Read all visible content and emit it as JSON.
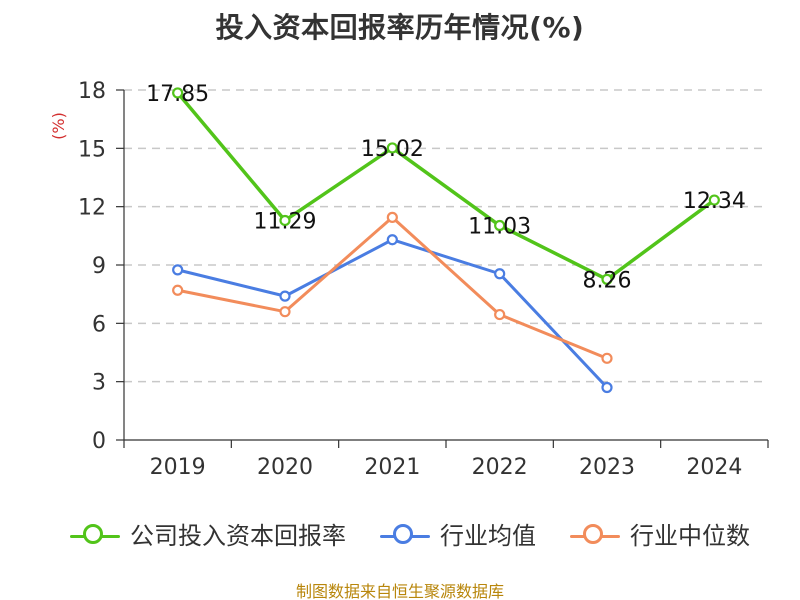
{
  "chart_data": {
    "type": "line",
    "title": "投入资本回报率历年情况(%)",
    "categories": [
      "2019",
      "2020",
      "2021",
      "2022",
      "2023",
      "2024"
    ],
    "ylabel": "(%)",
    "ylim": [
      0,
      18
    ],
    "yticks": [
      0,
      3,
      6,
      9,
      12,
      15,
      18
    ],
    "grid": true,
    "legend_position": "bottom",
    "series": [
      {
        "name": "公司投入资本回报率",
        "color": "#52c41a",
        "values": [
          17.85,
          11.29,
          15.02,
          11.03,
          8.26,
          12.34
        ],
        "labels": [
          "17.85",
          "11.29",
          "15.02",
          "11.03",
          "8.26",
          "12.34"
        ]
      },
      {
        "name": "行业均值",
        "color": "#4a7de2",
        "values": [
          8.75,
          7.4,
          10.3,
          8.55,
          2.7,
          null
        ]
      },
      {
        "name": "行业中位数",
        "color": "#f28c5b",
        "values": [
          7.7,
          6.6,
          11.45,
          6.45,
          4.2,
          null
        ]
      }
    ]
  },
  "footer": {
    "source": "制图数据来自恒生聚源数据库"
  }
}
